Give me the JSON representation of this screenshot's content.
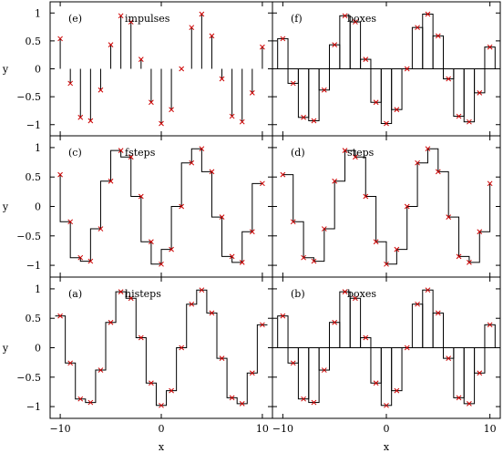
{
  "chart_data": [
    {
      "type": "line",
      "panel_label": "(e)",
      "plot_style": "impulses",
      "ylabel": "y",
      "xlabel": "",
      "xlim": [
        -11,
        11
      ],
      "ylim": [
        -1.2,
        1.2
      ],
      "x": [
        -10,
        -9,
        -8,
        -7,
        -6,
        -5,
        -4,
        -3,
        -2,
        -1,
        0,
        1,
        2,
        3,
        4,
        5,
        6,
        7,
        8,
        9,
        10
      ],
      "y": [
        0.54,
        -0.26,
        -0.87,
        -0.93,
        -0.38,
        0.43,
        0.95,
        0.84,
        0.17,
        -0.6,
        -0.98,
        -0.73,
        0.0,
        0.74,
        0.98,
        0.59,
        -0.18,
        -0.85,
        -0.95,
        -0.43,
        0.39
      ]
    },
    {
      "type": "line",
      "panel_label": "(f)",
      "plot_style": "boxes",
      "ylabel": "",
      "xlabel": "",
      "xlim": [
        -11,
        11
      ],
      "ylim": [
        -1.2,
        1.2
      ],
      "x": [
        -10,
        -9,
        -8,
        -7,
        -6,
        -5,
        -4,
        -3,
        -2,
        -1,
        0,
        1,
        2,
        3,
        4,
        5,
        6,
        7,
        8,
        9,
        10
      ],
      "y": [
        0.54,
        -0.26,
        -0.87,
        -0.93,
        -0.38,
        0.43,
        0.95,
        0.84,
        0.17,
        -0.6,
        -0.98,
        -0.73,
        0.0,
        0.74,
        0.98,
        0.59,
        -0.18,
        -0.85,
        -0.95,
        -0.43,
        0.39
      ]
    },
    {
      "type": "line",
      "panel_label": "(c)",
      "plot_style": "fsteps",
      "ylabel": "y",
      "xlabel": "",
      "xlim": [
        -11,
        11
      ],
      "ylim": [
        -1.2,
        1.2
      ],
      "x": [
        -10,
        -9,
        -8,
        -7,
        -6,
        -5,
        -4,
        -3,
        -2,
        -1,
        0,
        1,
        2,
        3,
        4,
        5,
        6,
        7,
        8,
        9,
        10
      ],
      "y": [
        0.54,
        -0.26,
        -0.87,
        -0.93,
        -0.38,
        0.43,
        0.95,
        0.84,
        0.17,
        -0.6,
        -0.98,
        -0.73,
        0.0,
        0.74,
        0.98,
        0.59,
        -0.18,
        -0.85,
        -0.95,
        -0.43,
        0.39
      ]
    },
    {
      "type": "line",
      "panel_label": "(d)",
      "plot_style": "steps",
      "ylabel": "",
      "xlabel": "",
      "xlim": [
        -11,
        11
      ],
      "ylim": [
        -1.2,
        1.2
      ],
      "x": [
        -10,
        -9,
        -8,
        -7,
        -6,
        -5,
        -4,
        -3,
        -2,
        -1,
        0,
        1,
        2,
        3,
        4,
        5,
        6,
        7,
        8,
        9,
        10
      ],
      "y": [
        0.54,
        -0.26,
        -0.87,
        -0.93,
        -0.38,
        0.43,
        0.95,
        0.84,
        0.17,
        -0.6,
        -0.98,
        -0.73,
        0.0,
        0.74,
        0.98,
        0.59,
        -0.18,
        -0.85,
        -0.95,
        -0.43,
        0.39
      ]
    },
    {
      "type": "line",
      "panel_label": "(a)",
      "plot_style": "histeps",
      "ylabel": "y",
      "xlabel": "x",
      "xlim": [
        -11,
        11
      ],
      "ylim": [
        -1.2,
        1.2
      ],
      "x": [
        -10,
        -9,
        -8,
        -7,
        -6,
        -5,
        -4,
        -3,
        -2,
        -1,
        0,
        1,
        2,
        3,
        4,
        5,
        6,
        7,
        8,
        9,
        10
      ],
      "y": [
        0.54,
        -0.26,
        -0.87,
        -0.93,
        -0.38,
        0.43,
        0.95,
        0.84,
        0.17,
        -0.6,
        -0.98,
        -0.73,
        0.0,
        0.74,
        0.98,
        0.59,
        -0.18,
        -0.85,
        -0.95,
        -0.43,
        0.39
      ]
    },
    {
      "type": "line",
      "panel_label": "(b)",
      "plot_style": "boxes",
      "ylabel": "",
      "xlabel": "x",
      "xlim": [
        -11,
        11
      ],
      "ylim": [
        -1.2,
        1.2
      ],
      "x": [
        -10,
        -9,
        -8,
        -7,
        -6,
        -5,
        -4,
        -3,
        -2,
        -1,
        0,
        1,
        2,
        3,
        4,
        5,
        6,
        7,
        8,
        9,
        10
      ],
      "y": [
        0.54,
        -0.26,
        -0.87,
        -0.93,
        -0.38,
        0.43,
        0.95,
        0.84,
        0.17,
        -0.6,
        -0.98,
        -0.73,
        0.0,
        0.74,
        0.98,
        0.59,
        -0.18,
        -0.85,
        -0.95,
        -0.43,
        0.39
      ]
    }
  ],
  "axes": {
    "x_ticks": [
      -10,
      0,
      10
    ],
    "x_tick_labels": [
      "−10",
      "0",
      "10"
    ],
    "y_ticks": [
      1,
      0.5,
      0,
      -0.5,
      -1
    ],
    "y_tick_labels": [
      "1",
      "0.5",
      "0",
      "−0.5",
      "−1"
    ]
  },
  "colors": {
    "line": "#000000",
    "marker": "#cc0000",
    "background": "#ffffff"
  }
}
